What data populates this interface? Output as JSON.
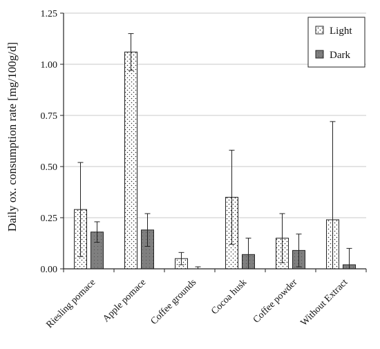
{
  "chart_data": {
    "type": "bar",
    "ylabel": "Daily ox. consumption rate [mg/100g/d]",
    "xlabel": "",
    "ylim": [
      0,
      1.25
    ],
    "yticks": [
      0.0,
      0.25,
      0.5,
      0.75,
      1.0,
      1.25
    ],
    "ytick_labels": [
      "0.00",
      "0.25",
      "0.50",
      "0.75",
      "1.00",
      "1.25"
    ],
    "grid": "horizontal",
    "legend_position": "top-right",
    "categories": [
      "Riesling pomace",
      "Apple pomace",
      "Coffee grounds",
      "Cocoa husk",
      "Coffee powder",
      "Without Extract"
    ],
    "series": [
      {
        "name": "Light",
        "pattern": "dotted",
        "fill": "#ffffff",
        "values": [
          0.29,
          1.06,
          0.05,
          0.35,
          0.15,
          0.24
        ],
        "err_low": [
          0.06,
          0.97,
          0.02,
          0.12,
          0.03,
          0.0
        ],
        "err_high": [
          0.52,
          1.15,
          0.08,
          0.58,
          0.27,
          0.72
        ]
      },
      {
        "name": "Dark",
        "pattern": "solid",
        "fill": "#808080",
        "values": [
          0.18,
          0.19,
          0.0,
          0.07,
          0.09,
          0.02
        ],
        "err_low": [
          0.13,
          0.11,
          0.0,
          0.0,
          0.01,
          0.0
        ],
        "err_high": [
          0.23,
          0.27,
          0.01,
          0.15,
          0.17,
          0.1
        ]
      }
    ]
  }
}
